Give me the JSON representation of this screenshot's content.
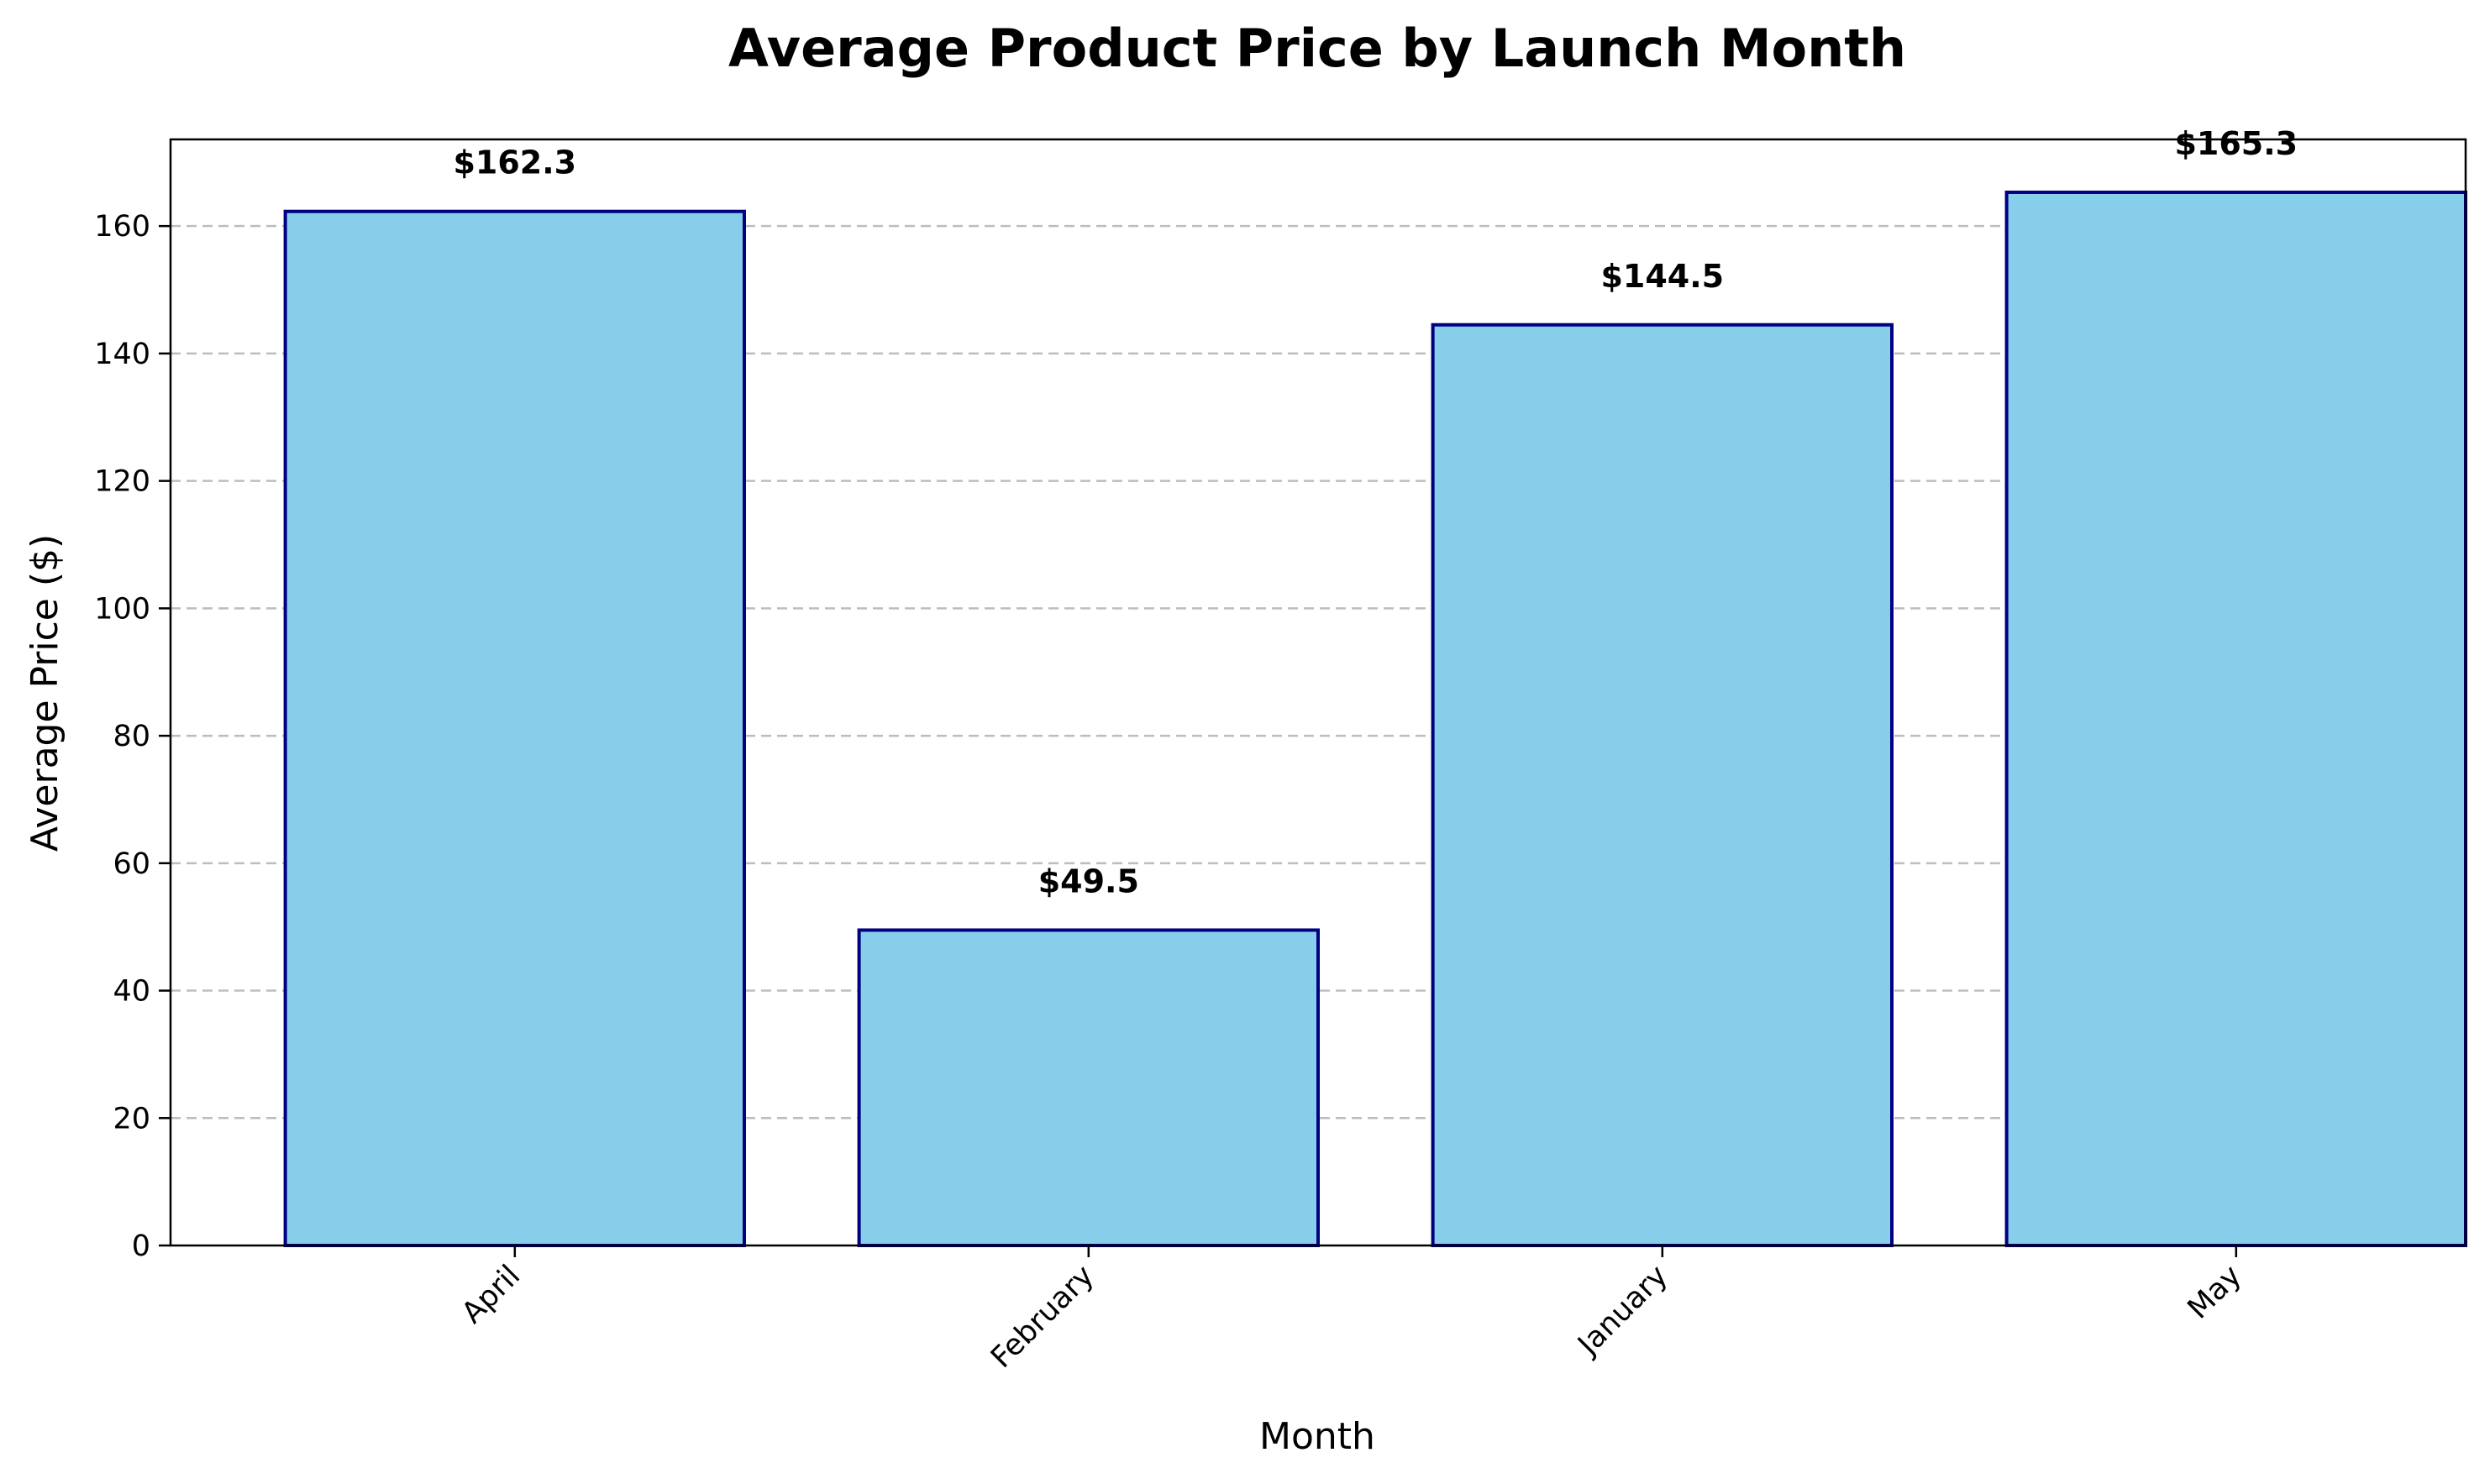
{
  "chart_data": {
    "type": "bar",
    "title": "Average Product Price by Launch Month",
    "xlabel": "Month",
    "ylabel": "Average Price ($)",
    "categories": [
      "April",
      "February",
      "January",
      "May"
    ],
    "values": [
      162.3,
      49.5,
      144.5,
      165.3
    ],
    "data_labels": [
      "$162.3",
      "$49.5",
      "$144.5",
      "$165.3"
    ],
    "ylim": [
      0,
      173.6
    ],
    "yticks": [
      0,
      20,
      40,
      60,
      80,
      100,
      120,
      140,
      160
    ],
    "grid": "y-dashed",
    "colors": {
      "bar_fill": "#87ceeb",
      "bar_edge": "#000080"
    }
  }
}
